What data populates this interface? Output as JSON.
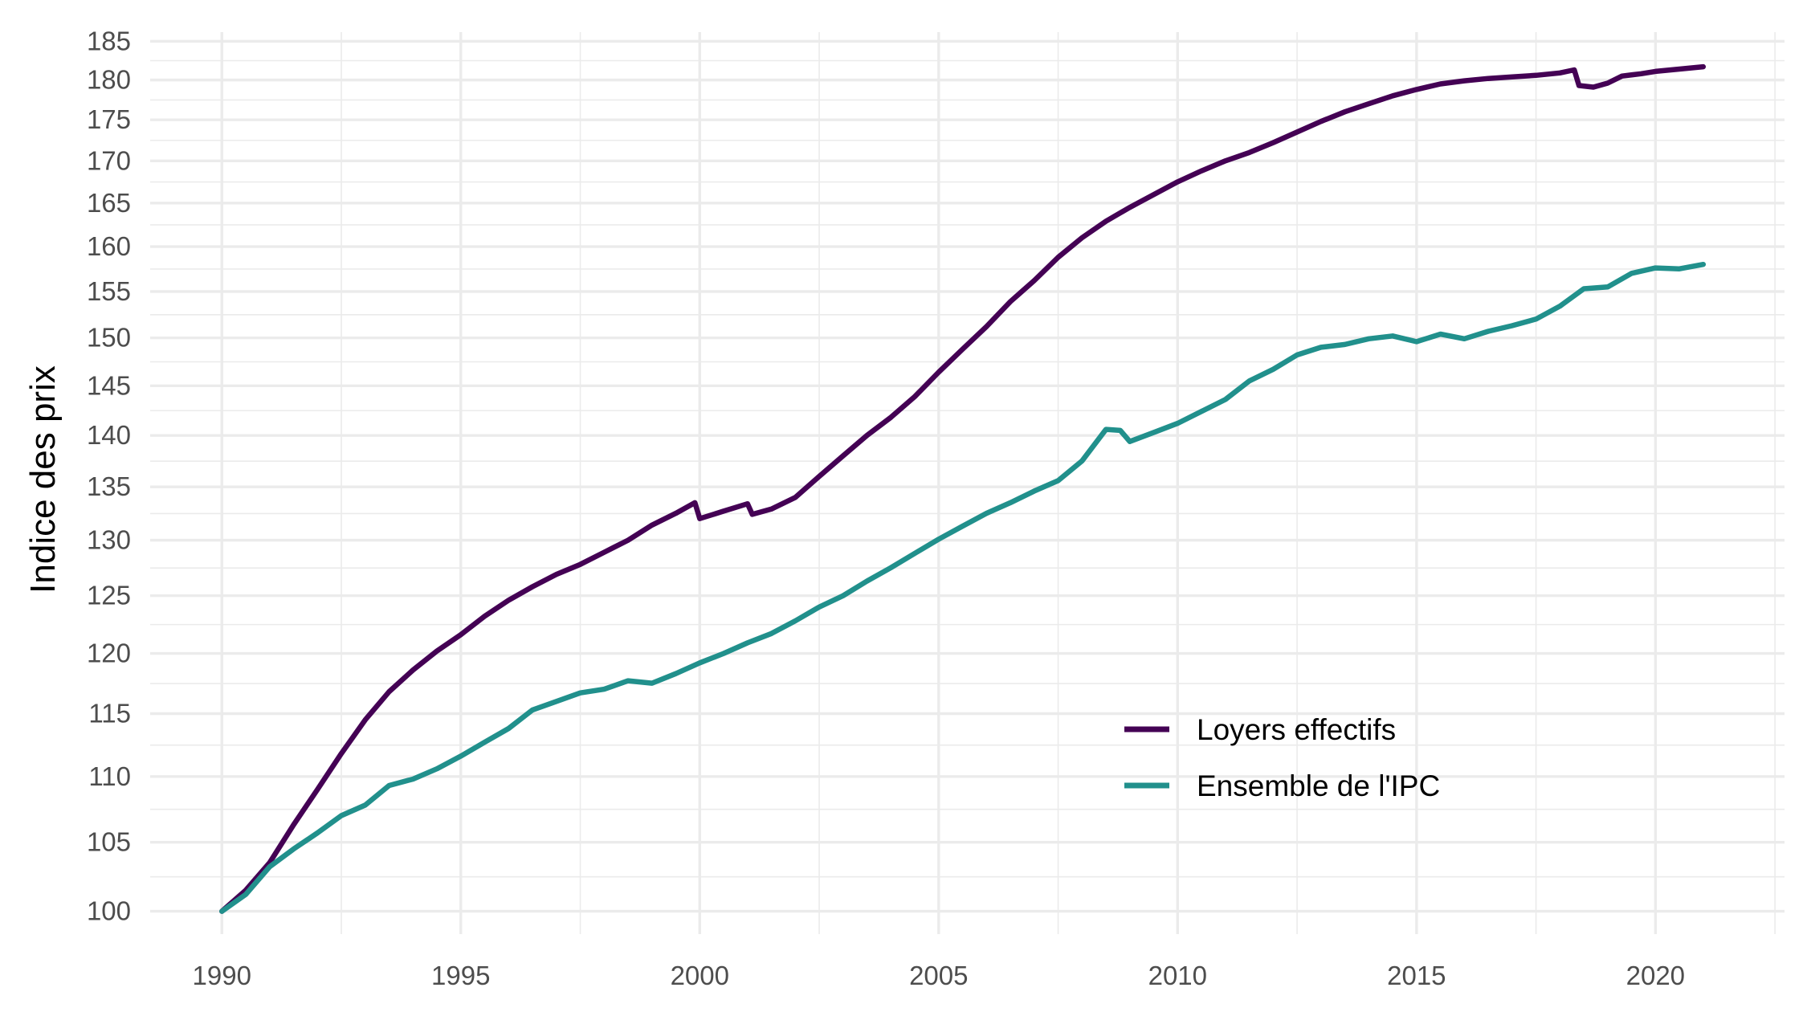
{
  "chart_data": {
    "type": "line",
    "xlabel": "",
    "ylabel": "Indice des prix",
    "y_scale": "log",
    "xlim": [
      1988.5,
      2022.7
    ],
    "ylim": [
      98.4,
      186.2
    ],
    "x_ticks": [
      1990,
      1995,
      2000,
      2005,
      2010,
      2015,
      2020
    ],
    "y_ticks": [
      100,
      105,
      110,
      115,
      120,
      125,
      130,
      135,
      140,
      145,
      150,
      155,
      160,
      165,
      170,
      175,
      180,
      185
    ],
    "grid": true,
    "legend_position": "bottom-right",
    "series": [
      {
        "name": "Loyers effectifs",
        "color": "#440154",
        "points": [
          [
            1990.0,
            100.0
          ],
          [
            1990.5,
            101.5
          ],
          [
            1991.0,
            103.5
          ],
          [
            1991.5,
            106.3
          ],
          [
            1992.0,
            109.0
          ],
          [
            1992.5,
            111.8
          ],
          [
            1993.0,
            114.5
          ],
          [
            1993.5,
            116.8
          ],
          [
            1994.0,
            118.6
          ],
          [
            1994.5,
            120.2
          ],
          [
            1995.0,
            121.6
          ],
          [
            1995.5,
            123.2
          ],
          [
            1996.0,
            124.6
          ],
          [
            1996.5,
            125.8
          ],
          [
            1997.0,
            126.9
          ],
          [
            1997.5,
            127.8
          ],
          [
            1998.0,
            128.9
          ],
          [
            1998.5,
            130.0
          ],
          [
            1999.0,
            131.4
          ],
          [
            1999.5,
            132.5
          ],
          [
            1999.9,
            133.5
          ],
          [
            2000.0,
            132.0
          ],
          [
            2000.5,
            132.7
          ],
          [
            2001.0,
            133.4
          ],
          [
            2001.1,
            132.4
          ],
          [
            2001.5,
            132.9
          ],
          [
            2002.0,
            134.0
          ],
          [
            2002.5,
            136.0
          ],
          [
            2003.0,
            138.0
          ],
          [
            2003.5,
            140.0
          ],
          [
            2004.0,
            141.8
          ],
          [
            2004.5,
            143.9
          ],
          [
            2005.0,
            146.4
          ],
          [
            2005.5,
            148.8
          ],
          [
            2006.0,
            151.2
          ],
          [
            2006.5,
            153.9
          ],
          [
            2007.0,
            156.2
          ],
          [
            2007.5,
            158.8
          ],
          [
            2008.0,
            161.0
          ],
          [
            2008.5,
            162.9
          ],
          [
            2009.0,
            164.5
          ],
          [
            2009.5,
            166.0
          ],
          [
            2010.0,
            167.5
          ],
          [
            2010.5,
            168.8
          ],
          [
            2011.0,
            170.0
          ],
          [
            2011.5,
            171.0
          ],
          [
            2012.0,
            172.2
          ],
          [
            2012.5,
            173.5
          ],
          [
            2013.0,
            174.8
          ],
          [
            2013.5,
            176.0
          ],
          [
            2014.0,
            177.0
          ],
          [
            2014.5,
            178.0
          ],
          [
            2015.0,
            178.8
          ],
          [
            2015.5,
            179.5
          ],
          [
            2016.0,
            179.9
          ],
          [
            2016.5,
            180.2
          ],
          [
            2017.0,
            180.4
          ],
          [
            2017.5,
            180.6
          ],
          [
            2018.0,
            180.9
          ],
          [
            2018.3,
            181.3
          ],
          [
            2018.4,
            179.3
          ],
          [
            2018.7,
            179.1
          ],
          [
            2019.0,
            179.6
          ],
          [
            2019.3,
            180.5
          ],
          [
            2019.7,
            180.8
          ],
          [
            2020.0,
            181.1
          ],
          [
            2020.5,
            181.4
          ],
          [
            2021.0,
            181.7
          ]
        ]
      },
      {
        "name": "Ensemble de l'IPC",
        "color": "#21908c",
        "points": [
          [
            1990.0,
            100.0
          ],
          [
            1990.5,
            101.2
          ],
          [
            1991.0,
            103.2
          ],
          [
            1991.5,
            104.5
          ],
          [
            1992.0,
            105.7
          ],
          [
            1992.5,
            107.0
          ],
          [
            1993.0,
            107.8
          ],
          [
            1993.5,
            109.3
          ],
          [
            1994.0,
            109.8
          ],
          [
            1994.5,
            110.6
          ],
          [
            1995.0,
            111.6
          ],
          [
            1995.5,
            112.7
          ],
          [
            1996.0,
            113.8
          ],
          [
            1996.5,
            115.3
          ],
          [
            1997.0,
            116.0
          ],
          [
            1997.5,
            116.7
          ],
          [
            1998.0,
            117.0
          ],
          [
            1998.5,
            117.7
          ],
          [
            1999.0,
            117.5
          ],
          [
            1999.5,
            118.3
          ],
          [
            2000.0,
            119.2
          ],
          [
            2000.5,
            120.0
          ],
          [
            2001.0,
            120.9
          ],
          [
            2001.5,
            121.7
          ],
          [
            2002.0,
            122.8
          ],
          [
            2002.5,
            124.0
          ],
          [
            2003.0,
            125.0
          ],
          [
            2003.5,
            126.3
          ],
          [
            2004.0,
            127.5
          ],
          [
            2004.5,
            128.8
          ],
          [
            2005.0,
            130.1
          ],
          [
            2005.5,
            131.3
          ],
          [
            2006.0,
            132.5
          ],
          [
            2006.5,
            133.5
          ],
          [
            2007.0,
            134.6
          ],
          [
            2007.5,
            135.6
          ],
          [
            2008.0,
            137.5
          ],
          [
            2008.5,
            140.6
          ],
          [
            2008.8,
            140.5
          ],
          [
            2009.0,
            139.4
          ],
          [
            2009.5,
            140.3
          ],
          [
            2010.0,
            141.2
          ],
          [
            2010.5,
            142.4
          ],
          [
            2011.0,
            143.6
          ],
          [
            2011.5,
            145.5
          ],
          [
            2012.0,
            146.7
          ],
          [
            2012.5,
            148.2
          ],
          [
            2013.0,
            149.0
          ],
          [
            2013.5,
            149.3
          ],
          [
            2014.0,
            149.9
          ],
          [
            2014.5,
            150.2
          ],
          [
            2015.0,
            149.6
          ],
          [
            2015.5,
            150.4
          ],
          [
            2016.0,
            149.9
          ],
          [
            2016.5,
            150.7
          ],
          [
            2017.0,
            151.3
          ],
          [
            2017.5,
            152.0
          ],
          [
            2018.0,
            153.4
          ],
          [
            2018.5,
            155.3
          ],
          [
            2019.0,
            155.5
          ],
          [
            2019.5,
            157.0
          ],
          [
            2020.0,
            157.6
          ],
          [
            2020.5,
            157.5
          ],
          [
            2021.0,
            158.0
          ]
        ]
      }
    ]
  }
}
